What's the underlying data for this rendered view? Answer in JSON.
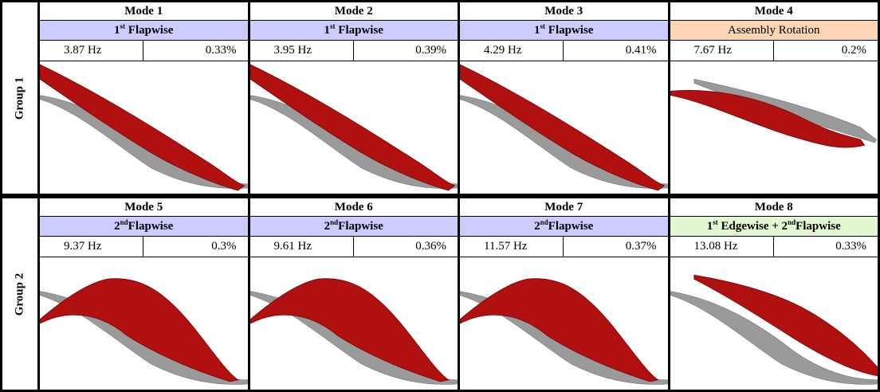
{
  "groups": [
    {
      "label": "Group 1",
      "modes": [
        {
          "title": "Mode 1",
          "shape": [
            {
              "text": "1"
            },
            {
              "sup": "st"
            },
            {
              "text": " Flapwise"
            }
          ],
          "color": "#ccccff",
          "frequency": "3.87 Hz",
          "damping": "0.33%"
        },
        {
          "title": "Mode 2",
          "shape": [
            {
              "text": "1"
            },
            {
              "sup": "st"
            },
            {
              "text": " Flapwise"
            }
          ],
          "color": "#ccccff",
          "frequency": "3.95 Hz",
          "damping": "0.39%"
        },
        {
          "title": "Mode 3",
          "shape": [
            {
              "text": "1"
            },
            {
              "sup": "st"
            },
            {
              "text": " Flapwise"
            }
          ],
          "color": "#ccccff",
          "frequency": "4.29 Hz",
          "damping": "0.41%"
        },
        {
          "title": "Mode 4",
          "shape": [
            {
              "text": "Assembly Rotation"
            }
          ],
          "color": "#fcd5b4",
          "frequency": "7.67 Hz",
          "damping": "0.2%"
        }
      ]
    },
    {
      "label": "Group 2",
      "modes": [
        {
          "title": "Mode 5",
          "shape": [
            {
              "text": "2"
            },
            {
              "sup": "nd"
            },
            {
              "text": "Flapwise"
            }
          ],
          "color": "#ccccff",
          "frequency": "9.37 Hz",
          "damping": "0.3%"
        },
        {
          "title": "Mode 6",
          "shape": [
            {
              "text": "2"
            },
            {
              "sup": "nd"
            },
            {
              "text": "Flapwise"
            }
          ],
          "color": "#ccccff",
          "frequency": "9.61 Hz",
          "damping": "0.36%"
        },
        {
          "title": "Mode 7",
          "shape": [
            {
              "text": "2"
            },
            {
              "sup": "nd"
            },
            {
              "text": "Flapwise"
            }
          ],
          "color": "#ccccff",
          "frequency": "11.57 Hz",
          "damping": "0.37%"
        },
        {
          "title": "Mode 8",
          "shape": [
            {
              "text": "1"
            },
            {
              "sup": "st"
            },
            {
              "text": " Edgewise + 2"
            },
            {
              "sup": "nd"
            },
            {
              "text": "Flapwise"
            }
          ],
          "color": "#e2f7d2",
          "frequency": "13.08 Hz",
          "damping": "0.33%"
        }
      ]
    }
  ]
}
